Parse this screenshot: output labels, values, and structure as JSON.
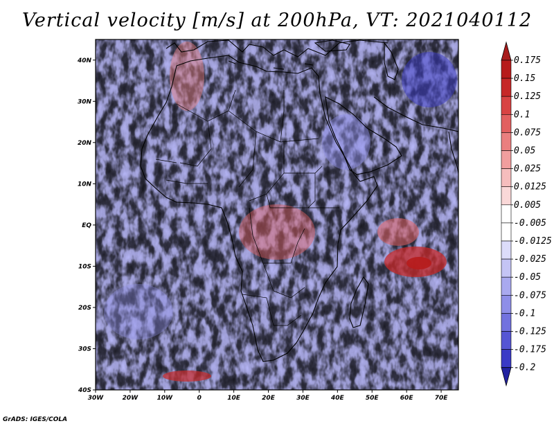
{
  "title": "Vertical velocity [m/s] at 200hPa, VT: 2021040112",
  "footer": "GrADS: IGES/COLA",
  "map": {
    "lon_range": [
      -30,
      75
    ],
    "lat_range": [
      -40,
      45
    ],
    "x_ticks": [
      {
        "lon": -30,
        "label": "30W"
      },
      {
        "lon": -20,
        "label": "20W"
      },
      {
        "lon": -10,
        "label": "10W"
      },
      {
        "lon": 0,
        "label": "0"
      },
      {
        "lon": 10,
        "label": "10E"
      },
      {
        "lon": 20,
        "label": "20E"
      },
      {
        "lon": 30,
        "label": "30E"
      },
      {
        "lon": 40,
        "label": "40E"
      },
      {
        "lon": 50,
        "label": "50E"
      },
      {
        "lon": 60,
        "label": "60E"
      },
      {
        "lon": 70,
        "label": "70E"
      }
    ],
    "y_ticks": [
      {
        "lat": 40,
        "label": "40N"
      },
      {
        "lat": 30,
        "label": "30N"
      },
      {
        "lat": 20,
        "label": "20N"
      },
      {
        "lat": 10,
        "label": "10N"
      },
      {
        "lat": 0,
        "label": "EQ"
      },
      {
        "lat": -10,
        "label": "10S"
      },
      {
        "lat": -20,
        "label": "20S"
      },
      {
        "lat": -30,
        "label": "30S"
      },
      {
        "lat": -40,
        "label": "40S"
      }
    ]
  },
  "colorbar": {
    "levels": [
      {
        "label": "0.175",
        "color": "#b71c1c"
      },
      {
        "label": "0.15",
        "color": "#c62828"
      },
      {
        "label": "0.125",
        "color": "#d84343"
      },
      {
        "label": "0.1",
        "color": "#e26060"
      },
      {
        "label": "0.075",
        "color": "#ea7f7f"
      },
      {
        "label": "0.05",
        "color": "#f19e9e"
      },
      {
        "label": "0.025",
        "color": "#f6bdbd"
      },
      {
        "label": "0.0125",
        "color": "#fad8d8"
      },
      {
        "label": "0.005",
        "color": "#ffffff"
      },
      {
        "label": "-0.005",
        "color": "#ffffff"
      },
      {
        "label": "-0.0125",
        "color": "#dcdcfa"
      },
      {
        "label": "-0.025",
        "color": "#c4c4f5"
      },
      {
        "label": "-0.05",
        "color": "#a9a9ef"
      },
      {
        "label": "-0.075",
        "color": "#8e8ee8"
      },
      {
        "label": "-0.1",
        "color": "#7272df"
      },
      {
        "label": "-0.125",
        "color": "#5555d4"
      },
      {
        "label": "-0.175",
        "color": "#3a3ac6"
      },
      {
        "label": "-0.2",
        "color": "#2a2aa8"
      }
    ],
    "top_color": "#a81c1c",
    "bottom_color": "#2222a0"
  }
}
